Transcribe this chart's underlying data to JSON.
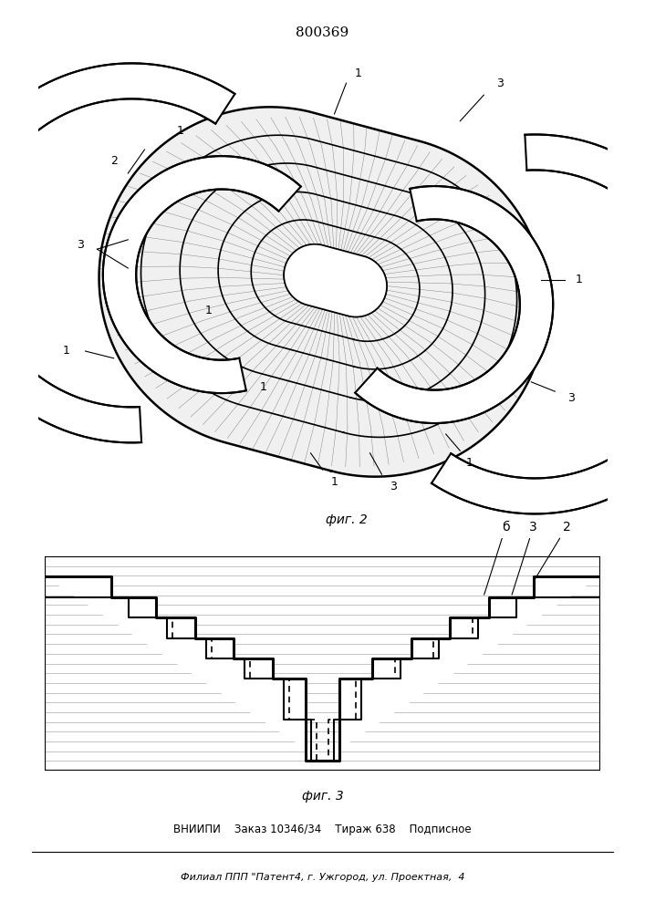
{
  "title_text": "800369",
  "fig1_caption": "фиг. 2",
  "fig2_caption": "фиг. 3",
  "footer_line1": "ВНИИПИ    Заказ 10346/34    Тираж 638    Подписное",
  "footer_line2": "Филиал ППП \"Патент4, г. Ужгород, ул. Проектная,  4",
  "bg_color": "#ffffff"
}
